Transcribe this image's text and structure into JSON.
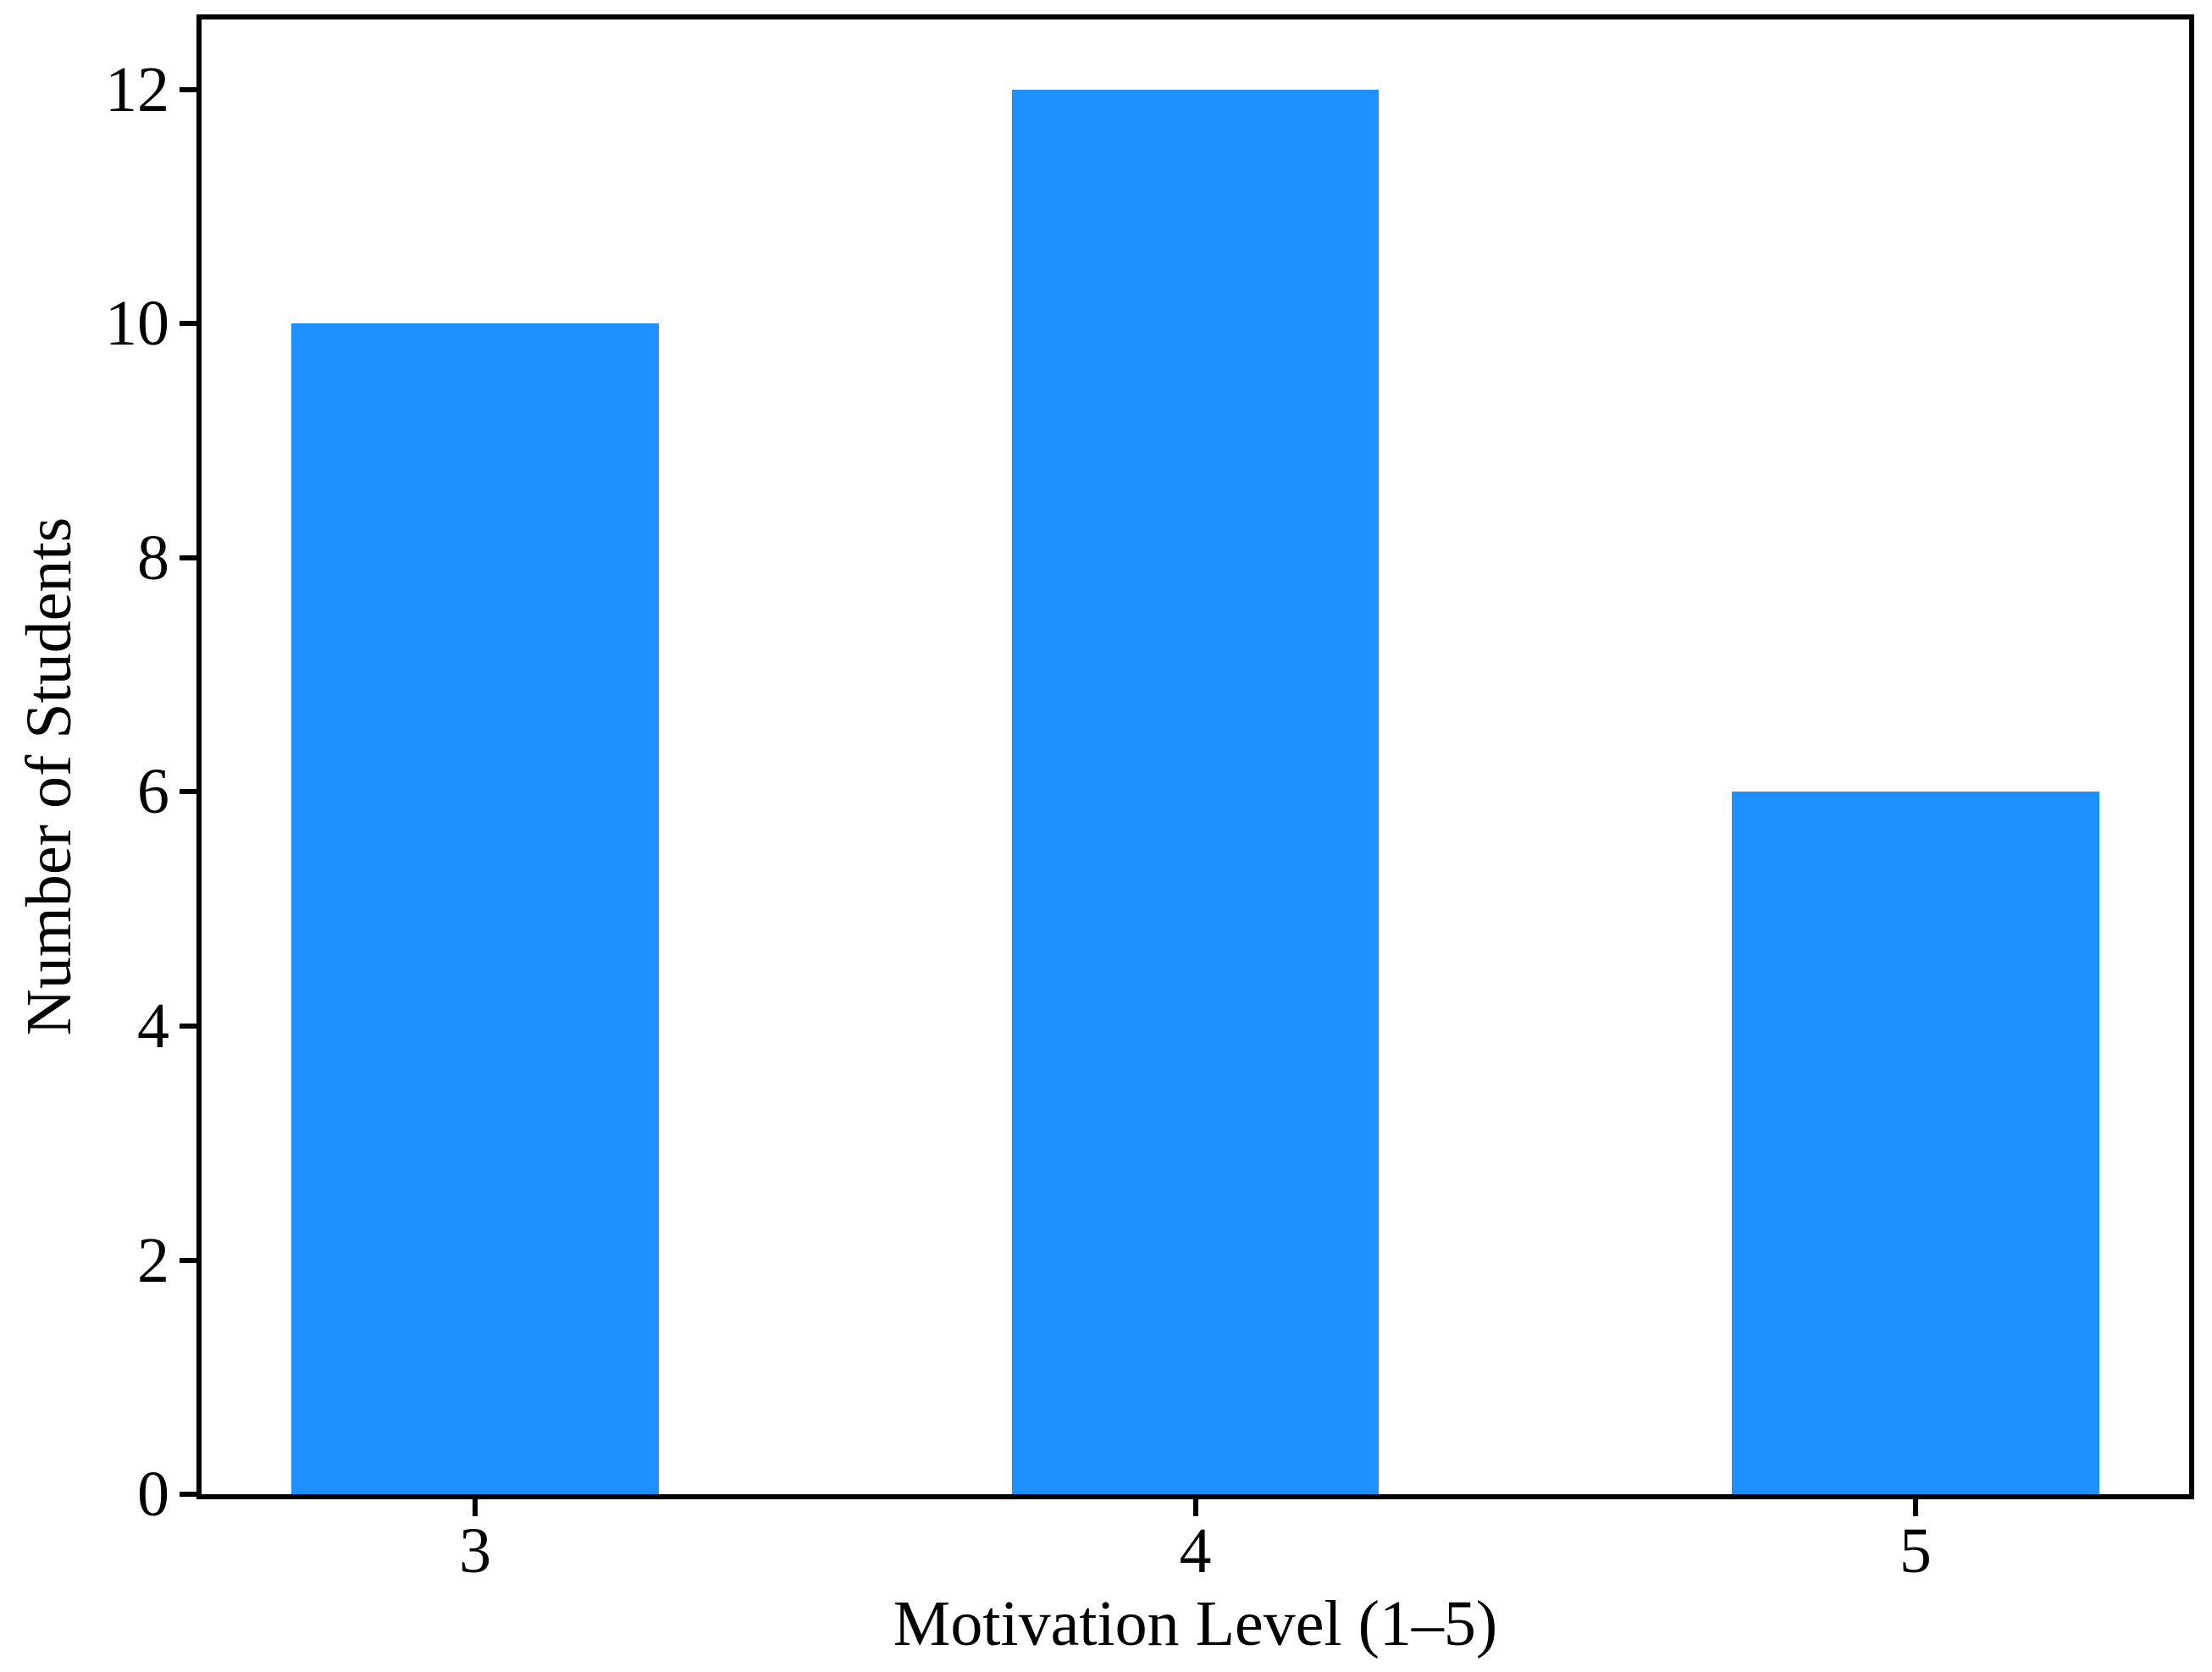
{
  "figure": {
    "background": "#ffffff"
  },
  "chart_data": {
    "type": "bar",
    "categories": [
      "3",
      "4",
      "5"
    ],
    "values": [
      10,
      12,
      6
    ],
    "title": "",
    "xlabel": "Motivation Level (1–5)",
    "ylabel": "Number of Students",
    "yticks": [
      0,
      2,
      4,
      6,
      8,
      10,
      12
    ],
    "ylim": [
      0,
      12.6
    ],
    "xlim": [
      -0.38,
      2.38
    ],
    "bar_width_units": 0.51,
    "bar_color": "#1E90FF",
    "axis_color": "#000000",
    "text_color": "#000000",
    "grid": false,
    "legend": false,
    "legend_position": "none"
  }
}
